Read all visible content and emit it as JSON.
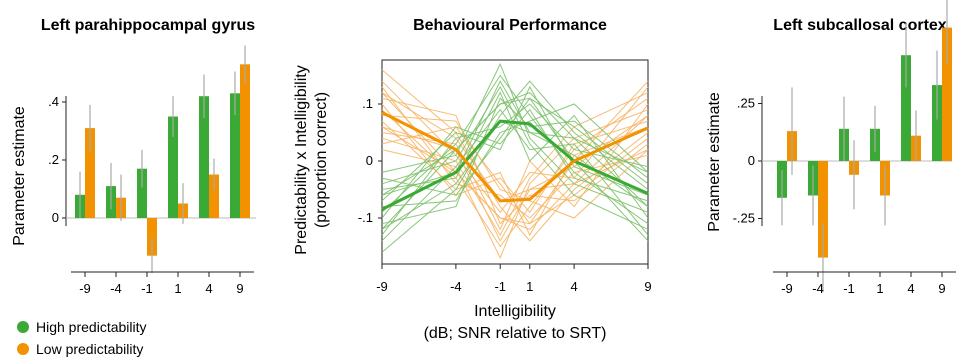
{
  "colors": {
    "high": "#3aa935",
    "low": "#f39200",
    "high_thin": "#7cc16c",
    "low_thin": "#f7b565",
    "err": "#aaaaaa",
    "axis": "#222222"
  },
  "legend": {
    "high_label": "High predictability",
    "low_label": "Low predictability"
  },
  "chart_data": [
    {
      "type": "bar",
      "title": "Left parahippocampal gyrus",
      "xlabel": "",
      "ylabel": "Parameter estimate",
      "categories": [
        "-9",
        "-4",
        "-1",
        "1",
        "4",
        "9"
      ],
      "yticks": [
        ".4",
        ".2",
        "0"
      ],
      "ytick_values": [
        0.4,
        0.2,
        0
      ],
      "ylim": [
        -0.13,
        0.6
      ],
      "series": [
        {
          "name": "High predictability",
          "values": [
            0.08,
            0.11,
            0.17,
            0.35,
            0.42,
            0.43
          ],
          "errors": [
            0.08,
            0.08,
            0.065,
            0.07,
            0.075,
            0.075
          ]
        },
        {
          "name": "Low predictability",
          "values": [
            0.31,
            0.07,
            -0.13,
            0.05,
            0.15,
            0.53
          ],
          "errors": [
            0.08,
            0.08,
            0.06,
            0.07,
            0.055,
            0.065
          ]
        }
      ]
    },
    {
      "type": "line",
      "title": "Behavioural Performance",
      "ylabel": [
        "Predictability x Intelligibility",
        "(proportion correct)"
      ],
      "xlabel": "Intelligibility",
      "xlabel2": "(dB; SNR relative to SRT)",
      "x": [
        -9,
        -4,
        -1,
        1,
        4,
        9
      ],
      "xticks": [
        "-9",
        "-4",
        "-1",
        "1",
        "4",
        "9"
      ],
      "yticks": [
        ".1",
        "0",
        "-.1"
      ],
      "ytick_values": [
        0.1,
        0,
        -0.1
      ],
      "ylim": [
        -0.18,
        0.17
      ],
      "series": [
        {
          "name": "High predictability",
          "values": [
            -0.085,
            -0.02,
            0.07,
            0.065,
            0.0,
            -0.057
          ]
        },
        {
          "name": "Low predictability",
          "values": [
            0.085,
            0.02,
            -0.07,
            -0.067,
            0.0,
            0.058
          ]
        }
      ],
      "individual_lines": {
        "high": [
          [
            -0.06,
            0.02,
            0.1,
            0.12,
            0.04,
            -0.02
          ],
          [
            -0.12,
            -0.04,
            0.07,
            0.05,
            0.01,
            -0.08
          ],
          [
            -0.09,
            0.03,
            0.15,
            0.08,
            -0.02,
            -0.11
          ],
          [
            -0.03,
            -0.06,
            0.04,
            0.11,
            0.06,
            -0.04
          ],
          [
            -0.14,
            -0.01,
            0.09,
            0.02,
            0.03,
            -0.13
          ],
          [
            -0.07,
            0.05,
            0.02,
            0.13,
            -0.01,
            -0.06
          ],
          [
            -0.11,
            -0.08,
            0.11,
            0.06,
            0.07,
            -0.03
          ],
          [
            -0.02,
            0.01,
            0.17,
            0.04,
            -0.04,
            -0.09
          ],
          [
            -0.13,
            0.04,
            0.06,
            0.1,
            0.02,
            -0.01
          ],
          [
            -0.05,
            -0.03,
            0.12,
            0.0,
            0.08,
            -0.1
          ],
          [
            -0.1,
            0.06,
            0.03,
            0.09,
            -0.03,
            -0.07
          ],
          [
            -0.16,
            -0.05,
            0.08,
            0.14,
            0.05,
            -0.05
          ],
          [
            -0.04,
            0.0,
            0.13,
            0.03,
            -0.06,
            -0.12
          ],
          [
            -0.08,
            -0.07,
            0.05,
            0.07,
            0.1,
            -0.02
          ],
          [
            -0.12,
            0.02,
            0.1,
            0.11,
            0.0,
            -0.14
          ],
          [
            -0.06,
            -0.02,
            0.14,
            0.05,
            0.04,
            -0.08
          ]
        ],
        "low": [
          [
            0.06,
            -0.02,
            -0.1,
            -0.12,
            -0.04,
            0.02
          ],
          [
            0.12,
            0.04,
            -0.07,
            -0.05,
            -0.01,
            0.08
          ],
          [
            0.09,
            -0.03,
            -0.15,
            -0.08,
            0.02,
            0.11
          ],
          [
            0.03,
            0.06,
            -0.04,
            -0.11,
            -0.06,
            0.04
          ],
          [
            0.14,
            0.01,
            -0.09,
            -0.02,
            -0.03,
            0.13
          ],
          [
            0.07,
            -0.05,
            -0.02,
            -0.13,
            0.01,
            0.06
          ],
          [
            0.11,
            0.08,
            -0.11,
            -0.06,
            -0.07,
            0.03
          ],
          [
            0.02,
            -0.01,
            -0.17,
            -0.04,
            0.04,
            0.09
          ],
          [
            0.13,
            -0.04,
            -0.06,
            -0.1,
            -0.02,
            0.01
          ],
          [
            0.05,
            0.03,
            -0.12,
            0.0,
            -0.08,
            0.1
          ],
          [
            0.1,
            -0.06,
            -0.03,
            -0.09,
            0.03,
            0.07
          ],
          [
            0.16,
            0.05,
            -0.08,
            -0.14,
            -0.05,
            0.05
          ],
          [
            0.04,
            0.0,
            -0.13,
            -0.03,
            0.06,
            0.12
          ],
          [
            0.08,
            0.07,
            -0.05,
            -0.07,
            -0.1,
            0.02
          ],
          [
            0.12,
            -0.02,
            -0.1,
            -0.11,
            0.0,
            0.14
          ],
          [
            0.06,
            0.02,
            -0.14,
            -0.05,
            -0.04,
            0.08
          ]
        ]
      }
    },
    {
      "type": "bar",
      "title": "Left subcallosal cortex",
      "xlabel": "",
      "ylabel": "Parameter estimate",
      "categories": [
        "-9",
        "-4",
        "-1",
        "1",
        "4",
        "9"
      ],
      "yticks": [
        ".25",
        "0",
        "-.25"
      ],
      "ytick_values": [
        0.25,
        0,
        -0.25
      ],
      "ylim": [
        -0.42,
        0.6
      ],
      "series": [
        {
          "name": "High predictability",
          "values": [
            -0.16,
            -0.15,
            0.14,
            0.14,
            0.46,
            0.33
          ],
          "errors": [
            0.12,
            0.13,
            0.14,
            0.1,
            0.14,
            0.15
          ]
        },
        {
          "name": "Low predictability",
          "values": [
            0.13,
            -0.42,
            -0.06,
            -0.15,
            0.11,
            0.58
          ],
          "errors": [
            0.19,
            0.15,
            0.15,
            0.13,
            0.11,
            0.16
          ]
        }
      ]
    }
  ]
}
